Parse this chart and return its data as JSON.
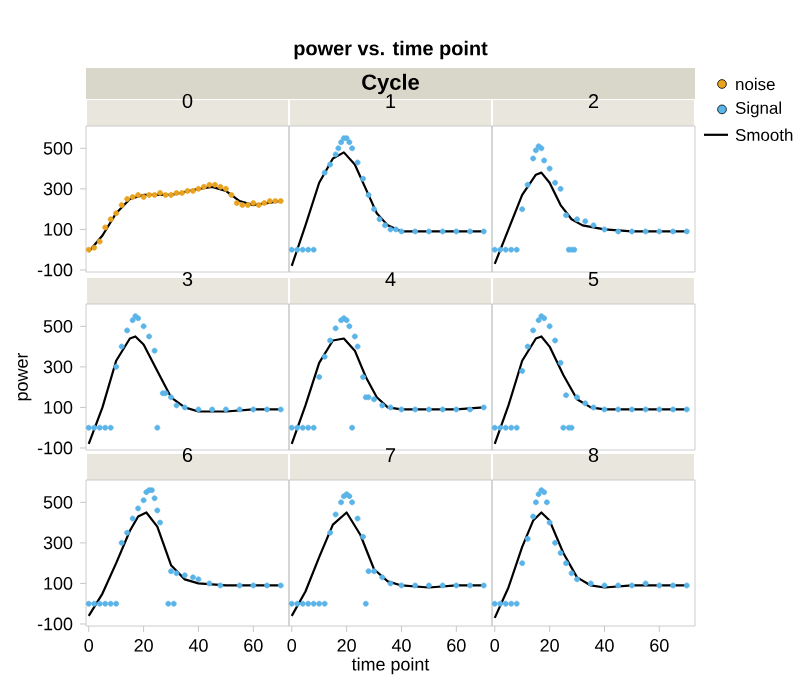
{
  "chart_data": [
    {
      "type": "scatter",
      "title": "0",
      "annotations": [
        "power vs. time point",
        "Cycle"
      ],
      "legend": "right",
      "xlim": [
        -1,
        73
      ],
      "ylim": [
        -110,
        610
      ],
      "xticks": [
        0,
        20,
        40,
        60
      ],
      "yticks": [
        -100,
        100,
        300,
        500
      ],
      "tick_labels": "y",
      "series": [
        {
          "name": "noise",
          "marker": "circle",
          "color": "#e9a321",
          "x": [
            0,
            2,
            4,
            6,
            8,
            10,
            12,
            14,
            16,
            18,
            20,
            22,
            24,
            26,
            28,
            30,
            32,
            34,
            36,
            38,
            40,
            42,
            44,
            46,
            48,
            50,
            52,
            54,
            56,
            58,
            60,
            62,
            64,
            66,
            68,
            70
          ],
          "values": [
            0,
            10,
            40,
            110,
            150,
            180,
            220,
            250,
            260,
            270,
            260,
            270,
            270,
            280,
            270,
            270,
            280,
            280,
            290,
            290,
            300,
            310,
            320,
            320,
            310,
            300,
            270,
            230,
            220,
            220,
            230,
            220,
            230,
            240,
            240,
            240
          ]
        },
        {
          "type": "line",
          "color": "#000000",
          "x": [
            0,
            5,
            10,
            15,
            20,
            30,
            40,
            45,
            50,
            55,
            60,
            65,
            70
          ],
          "values": [
            -10,
            70,
            180,
            250,
            270,
            270,
            300,
            310,
            290,
            240,
            220,
            230,
            240
          ]
        }
      ]
    },
    {
      "type": "scatter",
      "title": "1",
      "xlim": [
        -1,
        73
      ],
      "ylim": [
        -110,
        610
      ],
      "xticks": [
        0,
        20,
        40,
        60
      ],
      "yticks": [
        -100,
        100,
        300,
        500
      ],
      "tick_labels": false,
      "series": [
        {
          "marker": "circle",
          "color": "#5ab4e8",
          "x": [
            0,
            2,
            4,
            6,
            8,
            12,
            14,
            16,
            17,
            18,
            19,
            20,
            21,
            22,
            24,
            26,
            28,
            30,
            32,
            34,
            36,
            38,
            40,
            45,
            50,
            55,
            60,
            65,
            70
          ],
          "values": [
            0,
            0,
            0,
            0,
            0,
            380,
            420,
            470,
            500,
            530,
            550,
            550,
            530,
            500,
            430,
            350,
            270,
            200,
            150,
            120,
            100,
            100,
            90,
            90,
            90,
            90,
            90,
            90,
            90
          ]
        },
        {
          "type": "line",
          "color": "#000000",
          "x": [
            0,
            5,
            10,
            15,
            19,
            23,
            27,
            31,
            35,
            40,
            50,
            60,
            70
          ],
          "values": [
            -80,
            120,
            330,
            450,
            480,
            420,
            300,
            180,
            120,
            90,
            90,
            90,
            90
          ]
        }
      ]
    },
    {
      "type": "scatter",
      "title": "2",
      "legend": "right",
      "xlim": [
        -1,
        73
      ],
      "ylim": [
        -110,
        610
      ],
      "xticks": [
        0,
        20,
        40,
        60
      ],
      "yticks": [
        -100,
        100,
        300,
        500
      ],
      "tick_labels": false,
      "series": [
        {
          "name": "Signal",
          "marker": "circle",
          "color": "#5ab4e8",
          "x": [
            0,
            2,
            4,
            6,
            8,
            10,
            12,
            14,
            15,
            16,
            17,
            18,
            20,
            22,
            24,
            26,
            27,
            28,
            29,
            30,
            33,
            36,
            40,
            45,
            50,
            55,
            60,
            65,
            70
          ],
          "values": [
            0,
            0,
            0,
            0,
            0,
            200,
            320,
            450,
            490,
            510,
            500,
            440,
            400,
            330,
            300,
            170,
            0,
            0,
            0,
            150,
            140,
            120,
            100,
            90,
            90,
            90,
            90,
            90,
            90
          ]
        },
        {
          "name": "Smooth",
          "type": "line",
          "color": "#000000",
          "x": [
            0,
            5,
            10,
            15,
            17,
            20,
            24,
            28,
            32,
            40,
            50,
            60,
            70
          ],
          "values": [
            -70,
            100,
            270,
            370,
            380,
            330,
            220,
            150,
            120,
            100,
            90,
            90,
            90
          ]
        }
      ]
    },
    {
      "type": "scatter",
      "title": "3",
      "ylabel": "power",
      "xlim": [
        -1,
        73
      ],
      "ylim": [
        -110,
        610
      ],
      "xticks": [
        0,
        20,
        40,
        60
      ],
      "yticks": [
        -100,
        100,
        300,
        500
      ],
      "tick_labels": "y",
      "series": [
        {
          "marker": "circle",
          "color": "#5ab4e8",
          "x": [
            0,
            2,
            4,
            6,
            8,
            10,
            12,
            14,
            16,
            17,
            18,
            20,
            22,
            24,
            25,
            27,
            28,
            30,
            32,
            35,
            40,
            45,
            50,
            55,
            60,
            65,
            70
          ],
          "values": [
            0,
            0,
            0,
            0,
            0,
            300,
            400,
            480,
            530,
            550,
            540,
            500,
            450,
            380,
            0,
            170,
            170,
            150,
            110,
            100,
            90,
            90,
            90,
            90,
            90,
            90,
            90
          ]
        },
        {
          "type": "line",
          "color": "#000000",
          "x": [
            0,
            5,
            10,
            15,
            17,
            20,
            25,
            30,
            35,
            40,
            50,
            60,
            70
          ],
          "values": [
            -80,
            100,
            330,
            440,
            450,
            410,
            280,
            150,
            100,
            80,
            80,
            90,
            90
          ]
        }
      ]
    },
    {
      "type": "scatter",
      "title": "4",
      "xlim": [
        -1,
        73
      ],
      "ylim": [
        -110,
        610
      ],
      "xticks": [
        0,
        20,
        40,
        60
      ],
      "yticks": [
        -100,
        100,
        300,
        500
      ],
      "tick_labels": false,
      "series": [
        {
          "marker": "circle",
          "color": "#5ab4e8",
          "x": [
            0,
            2,
            4,
            6,
            8,
            10,
            12,
            14,
            16,
            18,
            19,
            20,
            21,
            22,
            23,
            24,
            26,
            27,
            28,
            30,
            33,
            36,
            40,
            45,
            50,
            55,
            60,
            65,
            70
          ],
          "values": [
            0,
            0,
            0,
            0,
            0,
            250,
            350,
            430,
            490,
            530,
            540,
            530,
            500,
            0,
            450,
            400,
            250,
            150,
            150,
            140,
            110,
            100,
            90,
            90,
            90,
            90,
            90,
            90,
            100
          ]
        },
        {
          "type": "line",
          "color": "#000000",
          "x": [
            0,
            5,
            10,
            15,
            19,
            23,
            27,
            31,
            35,
            40,
            50,
            60,
            70
          ],
          "values": [
            -80,
            110,
            320,
            430,
            440,
            380,
            250,
            150,
            100,
            90,
            90,
            90,
            100
          ]
        }
      ]
    },
    {
      "type": "scatter",
      "title": "5",
      "xlim": [
        -1,
        73
      ],
      "ylim": [
        -110,
        610
      ],
      "xticks": [
        0,
        20,
        40,
        60
      ],
      "yticks": [
        -100,
        100,
        300,
        500
      ],
      "tick_labels": false,
      "series": [
        {
          "marker": "circle",
          "color": "#5ab4e8",
          "x": [
            0,
            2,
            4,
            6,
            8,
            10,
            12,
            14,
            16,
            17,
            18,
            20,
            22,
            24,
            25,
            26,
            27,
            28,
            30,
            33,
            36,
            40,
            45,
            50,
            55,
            60,
            65,
            70
          ],
          "values": [
            0,
            0,
            0,
            0,
            0,
            280,
            400,
            480,
            530,
            550,
            540,
            500,
            430,
            320,
            0,
            160,
            0,
            0,
            150,
            120,
            100,
            90,
            90,
            90,
            90,
            90,
            90,
            90
          ]
        },
        {
          "type": "line",
          "color": "#000000",
          "x": [
            0,
            5,
            10,
            15,
            17,
            20,
            25,
            30,
            35,
            40,
            50,
            60,
            70
          ],
          "values": [
            -80,
            110,
            330,
            440,
            450,
            400,
            260,
            140,
            100,
            90,
            90,
            90,
            90
          ]
        }
      ]
    },
    {
      "type": "scatter",
      "title": "6",
      "xlim": [
        -1,
        73
      ],
      "ylim": [
        -110,
        610
      ],
      "xticks": [
        0,
        20,
        40,
        60
      ],
      "yticks": [
        -100,
        100,
        300,
        500
      ],
      "series": [
        {
          "marker": "circle",
          "color": "#5ab4e8",
          "x": [
            0,
            2,
            4,
            6,
            8,
            10,
            12,
            14,
            16,
            18,
            20,
            21,
            22,
            23,
            24,
            25,
            26,
            29,
            30,
            31,
            32,
            35,
            38,
            40,
            44,
            48,
            55,
            60,
            65,
            70
          ],
          "values": [
            0,
            0,
            0,
            0,
            0,
            0,
            300,
            350,
            420,
            470,
            510,
            550,
            560,
            560,
            520,
            460,
            400,
            0,
            160,
            0,
            150,
            140,
            130,
            120,
            100,
            90,
            90,
            90,
            90,
            90
          ]
        },
        {
          "type": "line",
          "color": "#000000",
          "x": [
            0,
            5,
            10,
            15,
            18,
            21,
            25,
            30,
            35,
            40,
            50,
            60,
            70
          ],
          "values": [
            -60,
            50,
            200,
            360,
            430,
            450,
            380,
            190,
            120,
            100,
            90,
            90,
            90
          ]
        }
      ]
    },
    {
      "type": "scatter",
      "title": "7",
      "xlabel": "time point",
      "xlim": [
        -1,
        73
      ],
      "ylim": [
        -110,
        610
      ],
      "xticks": [
        0,
        20,
        40,
        60
      ],
      "yticks": [
        -100,
        100,
        300,
        500
      ],
      "tick_labels": "x",
      "series": [
        {
          "marker": "circle",
          "color": "#5ab4e8",
          "x": [
            0,
            2,
            4,
            6,
            8,
            10,
            12,
            14,
            16,
            18,
            19,
            20,
            21,
            22,
            24,
            26,
            27,
            28,
            30,
            33,
            36,
            40,
            45,
            50,
            55,
            60,
            65,
            70
          ],
          "values": [
            0,
            0,
            0,
            0,
            0,
            0,
            0,
            350,
            440,
            500,
            530,
            540,
            530,
            500,
            420,
            330,
            0,
            160,
            160,
            130,
            100,
            90,
            90,
            90,
            90,
            90,
            90,
            90
          ]
        },
        {
          "type": "line",
          "color": "#000000",
          "x": [
            0,
            5,
            10,
            15,
            20,
            25,
            30,
            35,
            40,
            50,
            60,
            70
          ],
          "values": [
            -60,
            60,
            230,
            390,
            450,
            340,
            170,
            110,
            90,
            80,
            90,
            90
          ]
        }
      ]
    },
    {
      "type": "scatter",
      "title": "8",
      "xlim": [
        -1,
        73
      ],
      "ylim": [
        -110,
        610
      ],
      "xticks": [
        0,
        20,
        40,
        60
      ],
      "yticks": [
        -100,
        100,
        300,
        500
      ],
      "tick_labels": "x",
      "series": [
        {
          "marker": "circle",
          "color": "#5ab4e8",
          "x": [
            0,
            2,
            4,
            6,
            8,
            10,
            12,
            14,
            15,
            16,
            17,
            18,
            19,
            20,
            22,
            24,
            26,
            28,
            30,
            35,
            40,
            45,
            50,
            55,
            60,
            65,
            70
          ],
          "values": [
            0,
            0,
            0,
            0,
            0,
            200,
            320,
            430,
            500,
            540,
            560,
            550,
            500,
            400,
            300,
            250,
            200,
            150,
            120,
            100,
            90,
            90,
            90,
            100,
            90,
            90,
            90
          ]
        },
        {
          "type": "line",
          "color": "#000000",
          "x": [
            0,
            5,
            10,
            14,
            17,
            20,
            25,
            30,
            35,
            40,
            50,
            60,
            70
          ],
          "values": [
            -70,
            80,
            280,
            410,
            450,
            410,
            250,
            130,
            90,
            80,
            90,
            90,
            90
          ]
        }
      ]
    }
  ]
}
